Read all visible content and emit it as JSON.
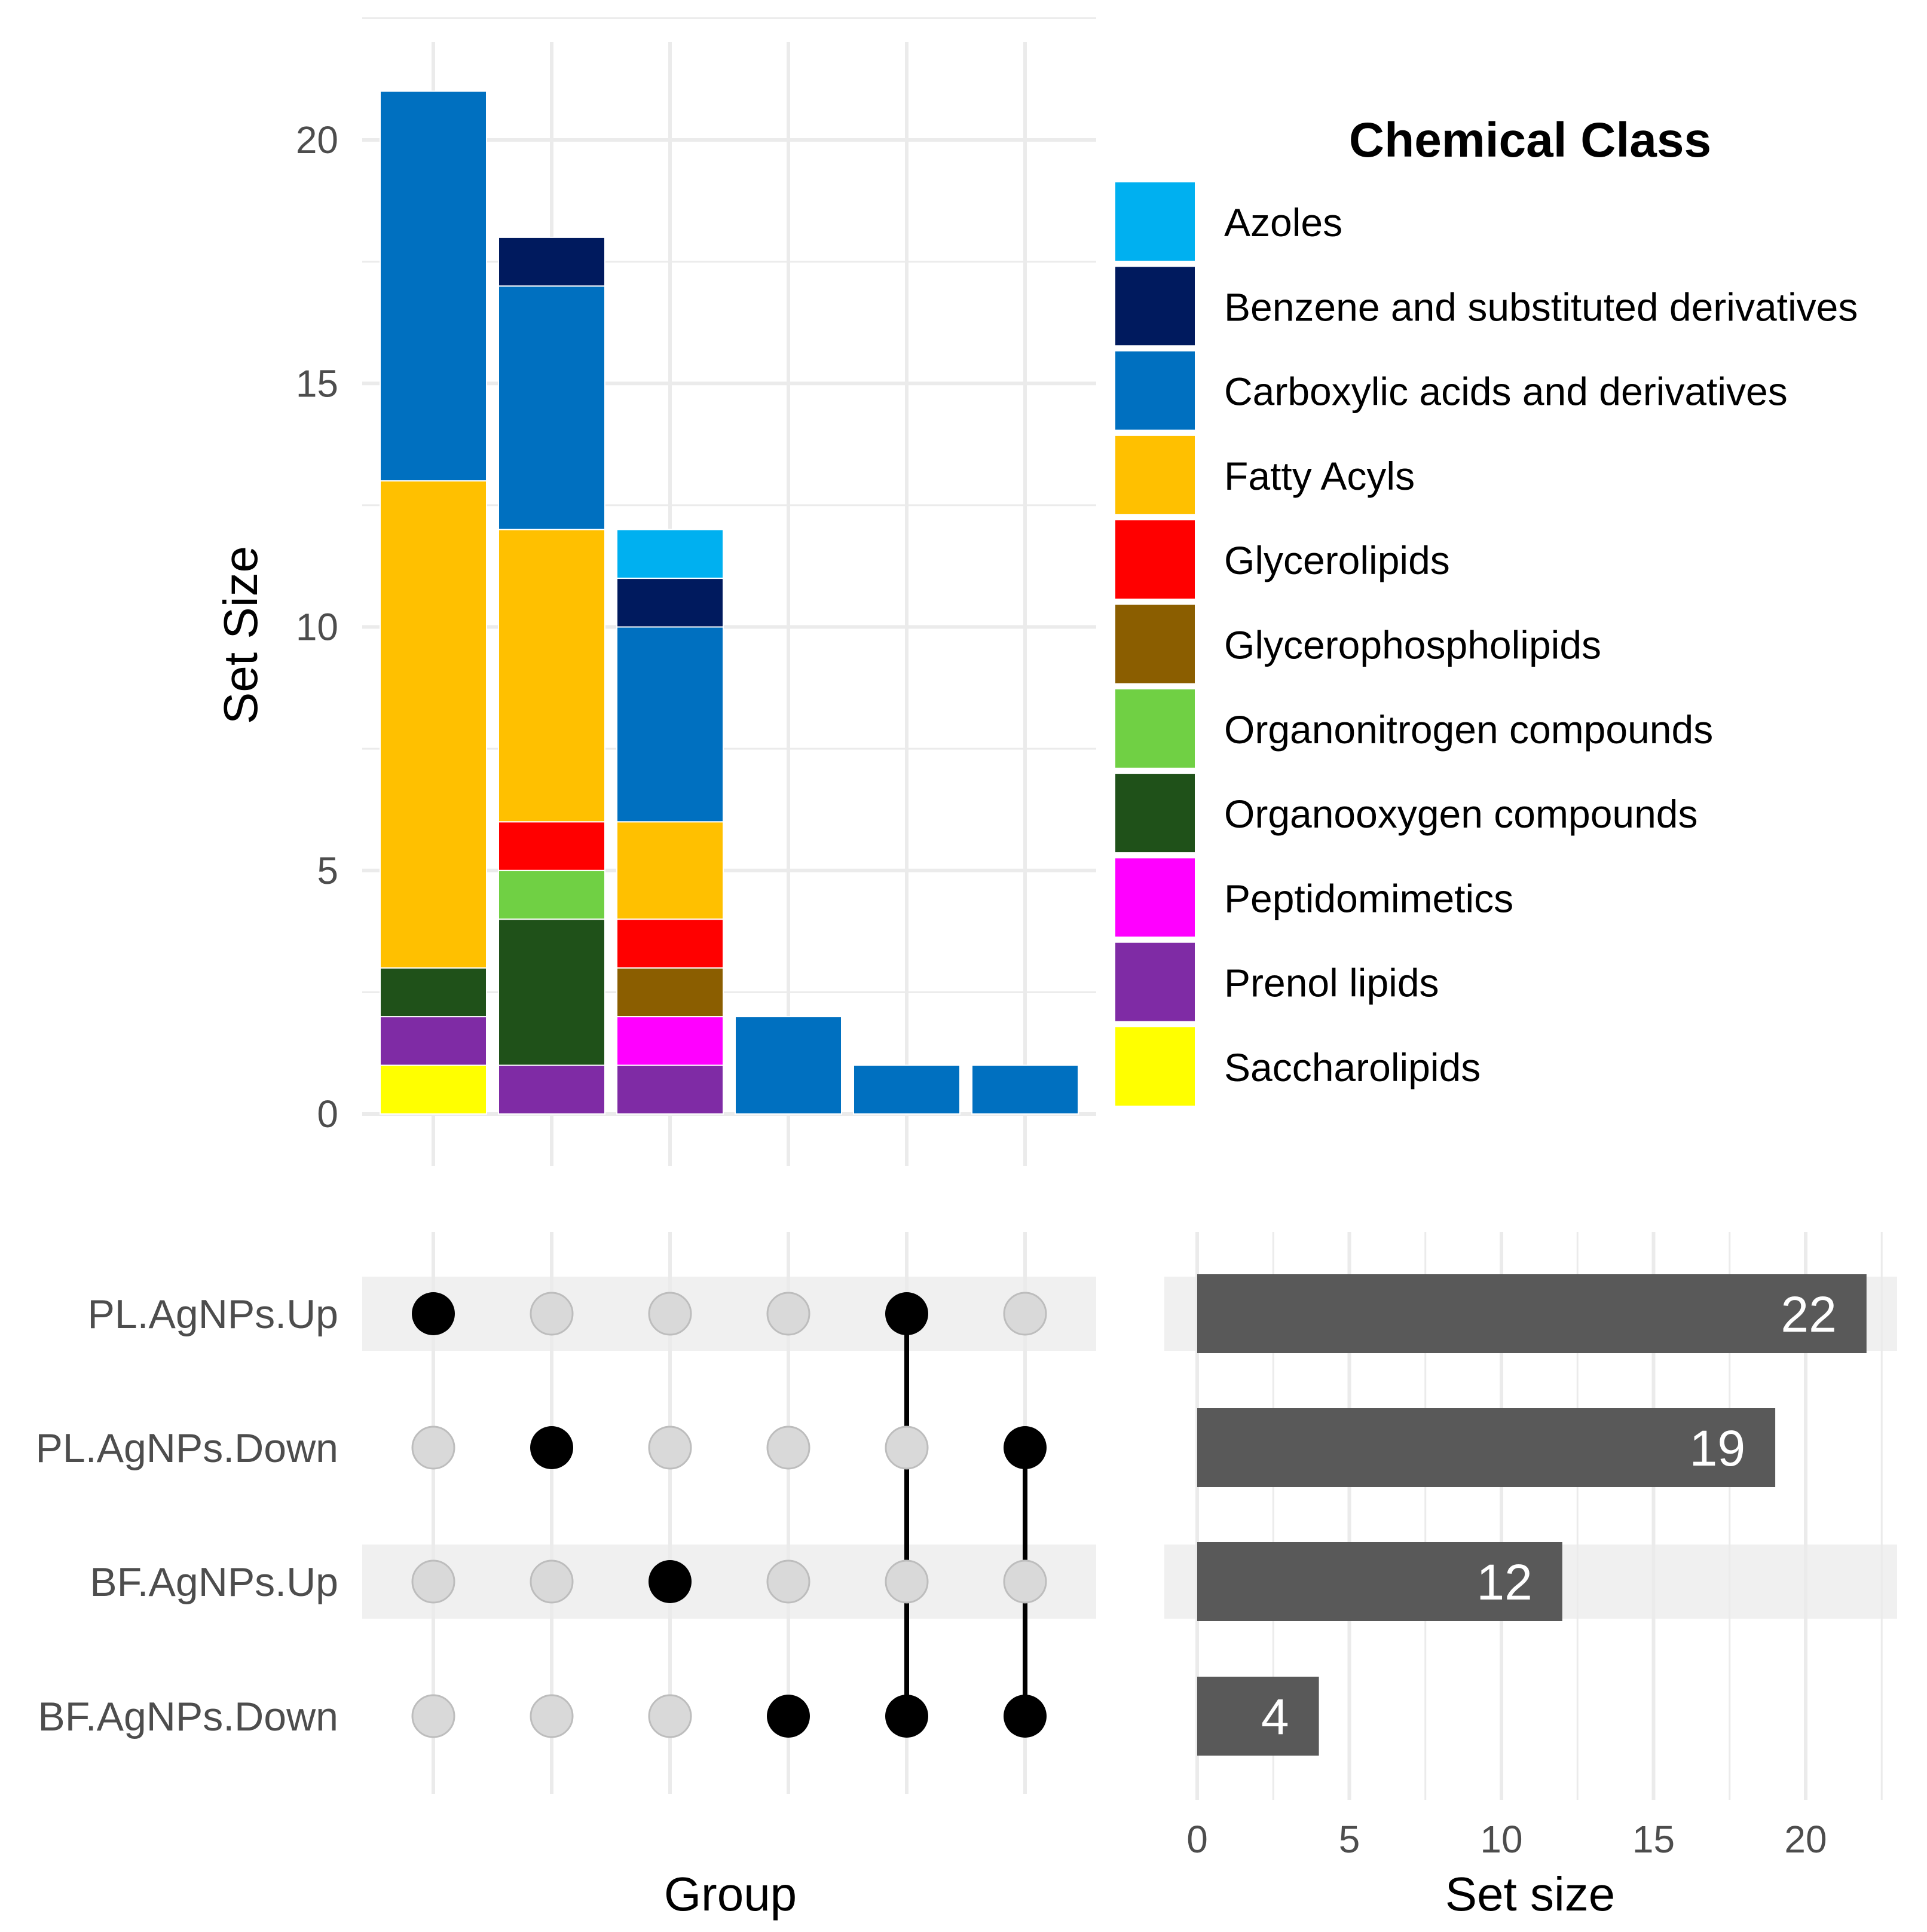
{
  "chart_data": [
    {
      "type": "bar",
      "stacked": true,
      "ylabel": "Set Size",
      "ylim": [
        0,
        22
      ],
      "yticks": [
        0,
        5,
        10,
        15,
        20
      ],
      "grid": true,
      "legend_position": "right",
      "columns": [
        "1",
        "2",
        "3",
        "4",
        "5",
        "6"
      ],
      "series": [
        {
          "name": "Azoles",
          "color": "#00B0F0",
          "values": [
            0,
            0,
            1,
            0,
            0,
            0
          ]
        },
        {
          "name": "Benzene and substituted derivatives",
          "color": "#001A5E",
          "values": [
            0,
            1,
            1,
            0,
            0,
            0
          ]
        },
        {
          "name": "Carboxylic acids and derivatives",
          "color": "#0070C0",
          "values": [
            8,
            5,
            4,
            2,
            1,
            1
          ]
        },
        {
          "name": "Fatty Acyls",
          "color": "#FFC000",
          "values": [
            10,
            6,
            2,
            0,
            0,
            0
          ]
        },
        {
          "name": "Glycerolipids",
          "color": "#FF0000",
          "values": [
            0,
            1,
            1,
            0,
            0,
            0
          ]
        },
        {
          "name": "Glycerophospholipids",
          "color": "#8B5E00",
          "values": [
            0,
            0,
            1,
            0,
            0,
            0
          ]
        },
        {
          "name": "Organonitrogen compounds",
          "color": "#70D044",
          "values": [
            0,
            1,
            0,
            0,
            0,
            0
          ]
        },
        {
          "name": "Organooxygen compounds",
          "color": "#1F5119",
          "values": [
            1,
            3,
            0,
            0,
            0,
            0
          ]
        },
        {
          "name": "Peptidomimetics",
          "color": "#FF00FF",
          "values": [
            0,
            0,
            1,
            0,
            0,
            0
          ]
        },
        {
          "name": "Prenol lipids",
          "color": "#7F2BA5",
          "values": [
            1,
            1,
            1,
            0,
            0,
            0
          ]
        },
        {
          "name": "Saccharolipids",
          "color": "#FFFF00",
          "values": [
            1,
            0,
            0,
            0,
            0,
            0
          ]
        }
      ],
      "legend_title": "Chemical Class"
    },
    {
      "type": "matrix",
      "xlabel": "Group",
      "sets": [
        "PL.AgNPs.Up",
        "PL.AgNPs.Down",
        "BF.AgNPs.Up",
        "BF.AgNPs.Down"
      ],
      "intersections": [
        [
          "PL.AgNPs.Up"
        ],
        [
          "PL.AgNPs.Down"
        ],
        [
          "BF.AgNPs.Up"
        ],
        [
          "BF.AgNPs.Down"
        ],
        [
          "PL.AgNPs.Up",
          "BF.AgNPs.Down"
        ],
        [
          "PL.AgNPs.Down",
          "BF.AgNPs.Down"
        ]
      ]
    },
    {
      "type": "bar",
      "orientation": "horizontal",
      "xlabel": "Set size",
      "categories": [
        "PL.AgNPs.Up",
        "PL.AgNPs.Down",
        "BF.AgNPs.Up",
        "BF.AgNPs.Down"
      ],
      "values": [
        22,
        19,
        12,
        4
      ],
      "labels": [
        "22",
        "19",
        "12",
        "4"
      ],
      "xlim": [
        0,
        23
      ],
      "xticks": [
        0,
        5,
        10,
        15,
        20
      ],
      "bar_color": "#595959"
    }
  ]
}
